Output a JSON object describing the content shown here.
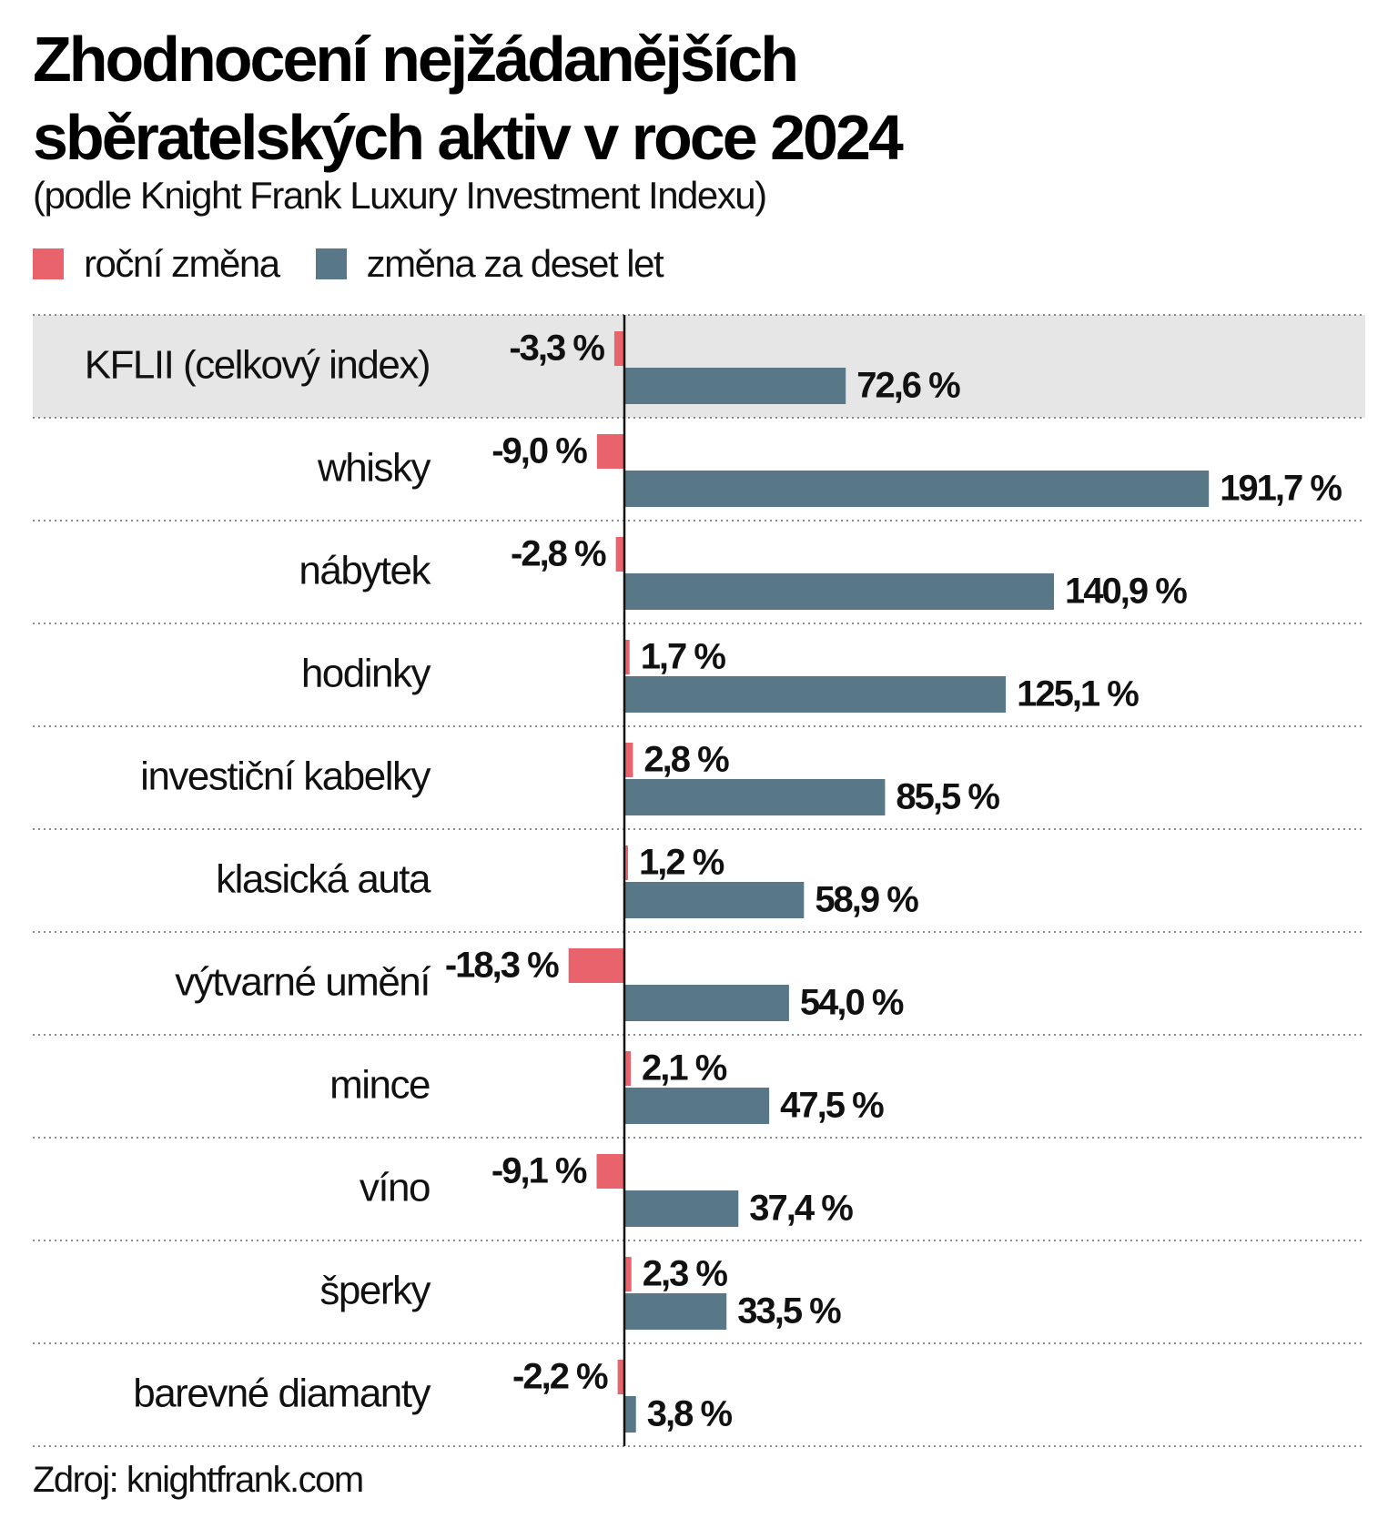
{
  "title": {
    "line1": "Zhodnocení nejžádanějších",
    "line2": "sběratelských aktiv v roce 2024"
  },
  "subtitle": "(podle Knight Frank Luxury Investment Indexu)",
  "legend": [
    {
      "label": "roční změna",
      "color": "#e8636b"
    },
    {
      "label": "změna za deset let",
      "color": "#587887"
    }
  ],
  "source": "Zdroj: knightfrank.com",
  "colors": {
    "annual": "#e8636b",
    "decade": "#587887",
    "highlight_bg": "#e6e6e6",
    "axis": "#111111",
    "separator": "#666666"
  },
  "chart_data": {
    "type": "bar",
    "orientation": "horizontal",
    "grid": false,
    "legend_placement": "top-left",
    "categories": [
      "KFLII (celkový index)",
      "whisky",
      "nábytek",
      "hodinky",
      "investiční kabelky",
      "klasická auta",
      "výtvarné umění",
      "mince",
      "víno",
      "šperky",
      "barevné diamanty"
    ],
    "highlighted_category": "KFLII (celkový index)",
    "series": [
      {
        "name": "roční změna",
        "values": [
          -3.3,
          -9.0,
          -2.8,
          1.7,
          2.8,
          1.2,
          -18.3,
          2.1,
          -9.1,
          2.3,
          -2.2
        ],
        "labels": [
          "-3,3 %",
          "-9,0 %",
          "-2,8 %",
          "1,7 %",
          "2,8 %",
          "1,2 %",
          "-18,3 %",
          "2,1 %",
          "-9,1 %",
          "2,3 %",
          "-2,2 %"
        ]
      },
      {
        "name": "změna za deset let",
        "values": [
          72.6,
          191.7,
          140.9,
          125.1,
          85.5,
          58.9,
          54.0,
          47.5,
          37.4,
          33.5,
          3.8
        ],
        "labels": [
          "72,6 %",
          "191,7 %",
          "140,9 %",
          "125,1 %",
          "85,5 %",
          "58,9 %",
          "54,0 %",
          "47,5 %",
          "37,4 %",
          "33,5 %",
          "3,8 %"
        ]
      }
    ]
  }
}
